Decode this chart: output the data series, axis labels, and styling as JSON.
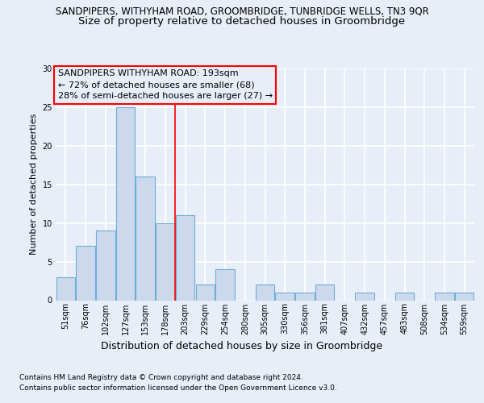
{
  "suptitle": "SANDPIPERS, WITHYHAM ROAD, GROOMBRIDGE, TUNBRIDGE WELLS, TN3 9QR",
  "title": "Size of property relative to detached houses in Groombridge",
  "xlabel": "Distribution of detached houses by size in Groombridge",
  "ylabel": "Number of detached properties",
  "categories": [
    "51sqm",
    "76sqm",
    "102sqm",
    "127sqm",
    "153sqm",
    "178sqm",
    "203sqm",
    "229sqm",
    "254sqm",
    "280sqm",
    "305sqm",
    "330sqm",
    "356sqm",
    "381sqm",
    "407sqm",
    "432sqm",
    "457sqm",
    "483sqm",
    "508sqm",
    "534sqm",
    "559sqm"
  ],
  "values": [
    3,
    7,
    9,
    25,
    16,
    10,
    11,
    2,
    4,
    0,
    2,
    1,
    1,
    2,
    0,
    1,
    0,
    1,
    0,
    1,
    1
  ],
  "bar_color": "#ccd9ed",
  "bar_edge_color": "#6baed6",
  "red_line_x": 5.5,
  "annotation_line1": "SANDPIPERS WITHYHAM ROAD: 193sqm",
  "annotation_line2": "← 72% of detached houses are smaller (68)",
  "annotation_line3": "28% of semi-detached houses are larger (27) →",
  "ylim": [
    0,
    30
  ],
  "yticks": [
    0,
    5,
    10,
    15,
    20,
    25,
    30
  ],
  "footer1": "Contains HM Land Registry data © Crown copyright and database right 2024.",
  "footer2": "Contains public sector information licensed under the Open Government Licence v3.0.",
  "bg_color": "#e8eef8",
  "grid_color": "#ffffff",
  "suptitle_fontsize": 8.5,
  "title_fontsize": 9.5,
  "ylabel_fontsize": 8,
  "xlabel_fontsize": 9,
  "tick_fontsize": 7,
  "annotation_fontsize": 8,
  "footer_fontsize": 6.5
}
